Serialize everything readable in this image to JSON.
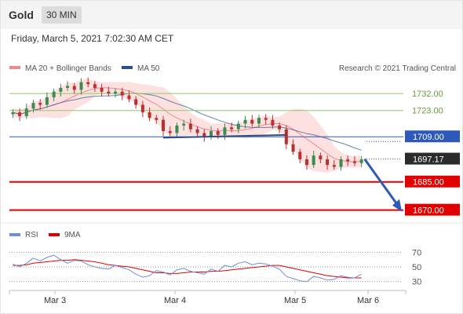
{
  "header": {
    "title": "Gold",
    "timeframe": "30 MIN"
  },
  "timestamp": "Friday, March 5, 2021 7:02:30 AM CET",
  "legend": {
    "ma20": "MA 20 + Bollinger Bands",
    "ma50": "MA 50",
    "credit": "Research © 2021 Trading Central",
    "rsi": "RSI",
    "ma9": "9MA"
  },
  "colors": {
    "ma20": "#f08a8a",
    "ma50": "#2c4f8c",
    "band": "#fddada",
    "resistance": "#8ccc66",
    "pivot": "#2f59b8",
    "support": "#e00000",
    "rsi": "#6f8fd6",
    "candle_up": "#3d8a50",
    "candle_down": "#b83030"
  },
  "chart_data": [
    {
      "type": "candlestick",
      "title": "Gold",
      "timeframe": "30 MIN",
      "x_ticks": [
        "Mar 3",
        "Mar 4",
        "Mar 5",
        "Mar 6"
      ],
      "ylim": [
        1664,
        1740
      ],
      "current_price": {
        "label": "1697.17",
        "value": 1697.17
      },
      "levels": [
        {
          "label": "1732.00",
          "value": 1732.0,
          "kind": "resistance"
        },
        {
          "label": "1723.00",
          "value": 1723.0,
          "kind": "resistance"
        },
        {
          "label": "1709.00",
          "value": 1709.0,
          "kind": "pivot"
        },
        {
          "label": "1685.00",
          "value": 1685.0,
          "kind": "support"
        },
        {
          "label": "1670.00",
          "value": 1670.0,
          "kind": "support"
        }
      ],
      "closes": [
        1722,
        1720,
        1724,
        1727,
        1726,
        1730,
        1733,
        1735,
        1736,
        1734,
        1738,
        1737,
        1735,
        1733,
        1732,
        1733,
        1731,
        1729,
        1726,
        1722,
        1719,
        1718,
        1712,
        1711,
        1715,
        1716,
        1713,
        1711,
        1709,
        1712,
        1710,
        1714,
        1713,
        1716,
        1718,
        1716,
        1719,
        1718,
        1715,
        1713,
        1705,
        1701,
        1697,
        1694,
        1699,
        1697,
        1694,
        1693,
        1697,
        1696,
        1695,
        1697
      ],
      "trendline_end": 1710,
      "forecast": {
        "from": 1697.17,
        "to": 1670.0
      }
    },
    {
      "type": "line",
      "series": [
        {
          "name": "RSI"
        },
        {
          "name": "9MA"
        }
      ],
      "y_ticks": [
        70,
        50,
        30
      ],
      "ylim": [
        20,
        80
      ],
      "rsi": [
        54,
        50,
        55,
        62,
        58,
        63,
        66,
        60,
        55,
        59,
        58,
        53,
        50,
        48,
        47,
        52,
        49,
        46,
        40,
        36,
        38,
        45,
        43,
        39,
        46,
        48,
        44,
        42,
        40,
        47,
        44,
        52,
        50,
        55,
        57,
        53,
        55,
        54,
        51,
        47,
        37,
        34,
        31,
        30,
        37,
        35,
        32,
        33,
        38,
        36,
        35,
        40
      ],
      "ma9": [
        52,
        52,
        53,
        55,
        56,
        57,
        58,
        59,
        59,
        60,
        59,
        58,
        57,
        55,
        53,
        52,
        51,
        50,
        48,
        46,
        44,
        42,
        42,
        41,
        41,
        42,
        43,
        43,
        43,
        44,
        44,
        45,
        46,
        47,
        48,
        49,
        50,
        51,
        52,
        52,
        50,
        48,
        46,
        44,
        42,
        40,
        38,
        37,
        36,
        35,
        35,
        35
      ]
    }
  ]
}
